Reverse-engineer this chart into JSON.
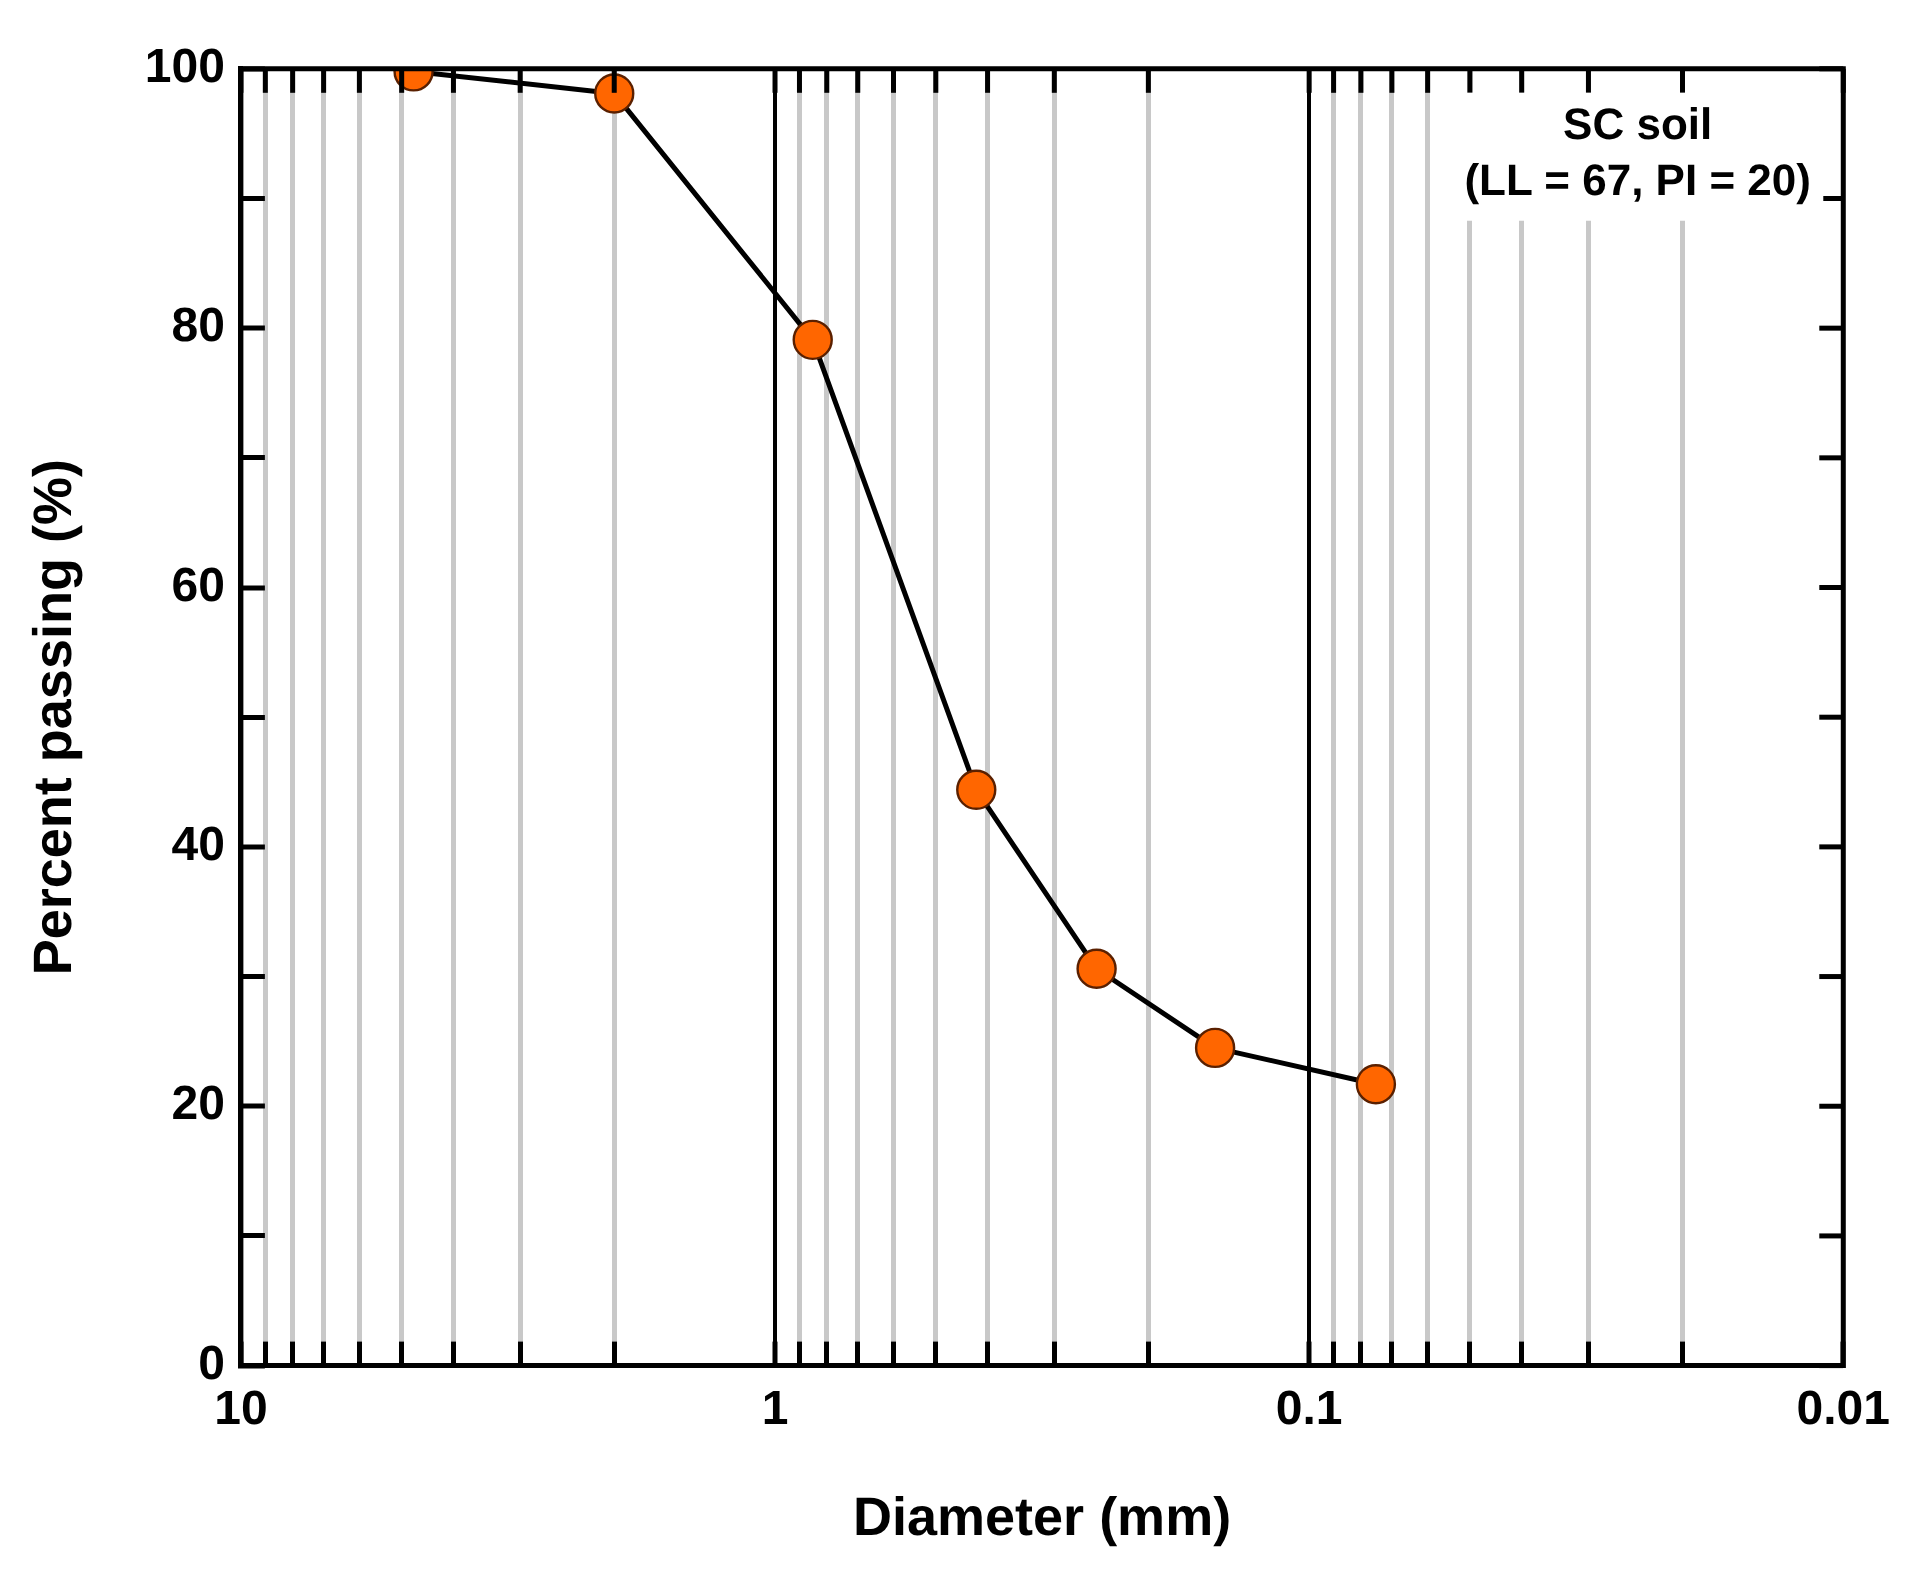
{
  "chart_data": {
    "type": "line",
    "xlabel": "Diameter (mm)",
    "ylabel": "Percent passing (%)",
    "x": [
      4.75,
      2.0,
      0.85,
      0.42,
      0.25,
      0.15,
      0.075
    ],
    "series": [
      {
        "color": "#ff6600",
        "values": [
          99.8,
          98.1,
          79.1,
          44.4,
          30.6,
          24.5,
          21.7
        ]
      }
    ],
    "log": "x",
    "xlim": [
      10,
      0.01
    ],
    "xticks": [
      {
        "value": 10,
        "label": "10"
      },
      {
        "value": 9,
        "label": null
      },
      {
        "value": 8,
        "label": null
      },
      {
        "value": 7,
        "label": null
      },
      {
        "value": 6,
        "label": null
      },
      {
        "value": 5,
        "label": null
      },
      {
        "value": 4,
        "label": null
      },
      {
        "value": 3,
        "label": null
      },
      {
        "value": 2,
        "label": null
      },
      {
        "value": 1,
        "label": "1"
      },
      {
        "value": 0.9,
        "label": null
      },
      {
        "value": 0.8,
        "label": null
      },
      {
        "value": 0.7,
        "label": null
      },
      {
        "value": 0.6,
        "label": null
      },
      {
        "value": 0.5,
        "label": null
      },
      {
        "value": 0.4,
        "label": null
      },
      {
        "value": 0.3,
        "label": null
      },
      {
        "value": 0.2,
        "label": null
      },
      {
        "value": 0.1,
        "label": "0.1"
      },
      {
        "value": 0.09,
        "label": null
      },
      {
        "value": 0.08,
        "label": null
      },
      {
        "value": 0.07,
        "label": null
      },
      {
        "value": 0.06,
        "label": null
      },
      {
        "value": 0.05,
        "label": null
      },
      {
        "value": 0.04,
        "label": null
      },
      {
        "value": 0.03,
        "label": null
      },
      {
        "value": 0.02,
        "label": null
      },
      {
        "value": 0.01,
        "label": "0.01"
      }
    ],
    "ylim": [
      0,
      100
    ],
    "yticks": [
      0,
      {
        "value": 10,
        "label": null
      },
      20,
      {
        "value": 30,
        "label": null
      },
      40,
      {
        "value": 50,
        "label": null
      },
      60,
      {
        "value": 70,
        "label": null
      },
      80,
      {
        "value": 90,
        "label": null
      },
      100
    ],
    "grid": "x",
    "marker": "circle",
    "line_style": "solid",
    "annotations": [
      "SC soil\n(LL = 67, PI = 20)"
    ]
  }
}
